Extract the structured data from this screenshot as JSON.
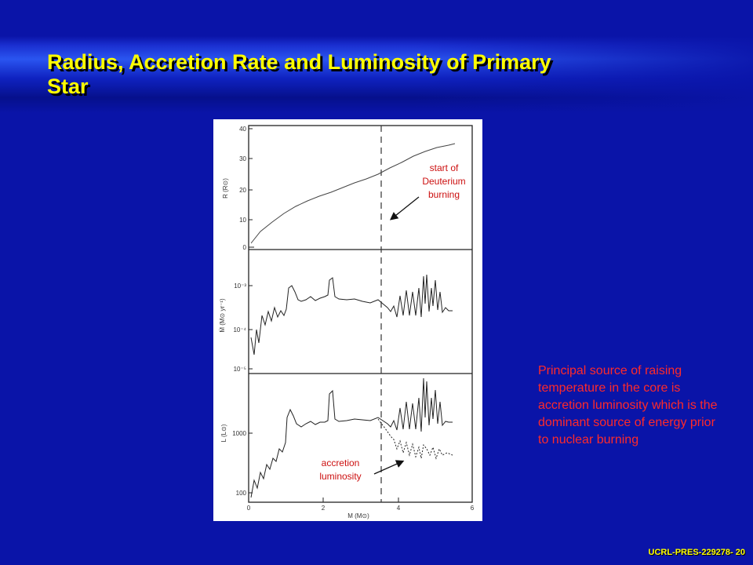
{
  "slide": {
    "title": "Radius, Accretion Rate and Luminosity of Primary Star",
    "description": "Principal source of raising temperature in the core is accretion luminosity which is the dominant source of energy prior to nuclear burning",
    "footer": "UCRL-PRES-229278- 20",
    "colors": {
      "background": "#0a14a8",
      "title": "#ffff00",
      "description": "#ff2a2a",
      "annotation": "#cc1010"
    }
  },
  "figure": {
    "annotations": {
      "deuterium": "start of Deuterium burning",
      "accretion": "accretion luminosity"
    },
    "panels": [
      {
        "ylabel": "R (R⊙)",
        "yticks": [
          "0",
          "10",
          "20",
          "30",
          "40"
        ]
      },
      {
        "ylabel": "Ṁ (M⊙ yr⁻¹)",
        "yticks": [
          "10⁻⁵",
          "10⁻⁴",
          "10⁻³"
        ]
      },
      {
        "ylabel": "L (L⊙)",
        "yticks": [
          "100",
          "1000"
        ]
      }
    ],
    "xlabel": "M (M⊙)",
    "xticks": [
      "0",
      "2",
      "4",
      "6"
    ]
  }
}
